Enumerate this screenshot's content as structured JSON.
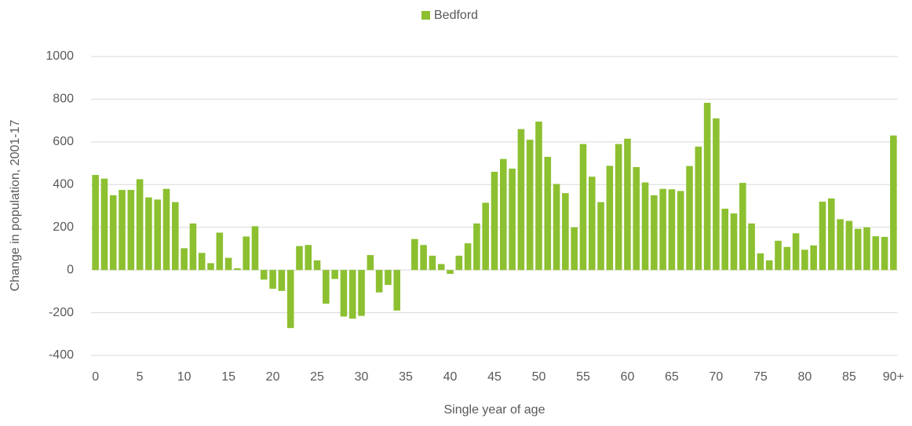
{
  "chart_data": {
    "type": "bar",
    "x_label": "Single year of age",
    "y_label": "Change in population, 2001-17",
    "categories": [
      "0",
      null,
      null,
      null,
      null,
      "5",
      null,
      null,
      null,
      null,
      "10",
      null,
      null,
      null,
      null,
      "15",
      null,
      null,
      null,
      null,
      "20",
      null,
      null,
      null,
      null,
      "25",
      null,
      null,
      null,
      null,
      "30",
      null,
      null,
      null,
      null,
      "35",
      null,
      null,
      null,
      null,
      "40",
      null,
      null,
      null,
      null,
      "45",
      null,
      null,
      null,
      null,
      "50",
      null,
      null,
      null,
      null,
      "55",
      null,
      null,
      null,
      null,
      "60",
      null,
      null,
      null,
      null,
      "65",
      null,
      null,
      null,
      null,
      "70",
      null,
      null,
      null,
      null,
      "75",
      null,
      null,
      null,
      null,
      "80",
      null,
      null,
      null,
      null,
      "85",
      null,
      null,
      null,
      null,
      "90+"
    ],
    "series": [
      {
        "name": "Bedford",
        "color": "#8cc030",
        "values": [
          445,
          428,
          350,
          375,
          375,
          425,
          340,
          330,
          380,
          318,
          102,
          218,
          80,
          32,
          175,
          57,
          8,
          157,
          205,
          -45,
          -88,
          -98,
          -272,
          112,
          117,
          45,
          -158,
          -42,
          -218,
          -228,
          -215,
          70,
          -105,
          -70,
          -190,
          0,
          145,
          117,
          67,
          28,
          -18,
          67,
          125,
          218,
          315,
          460,
          520,
          475,
          660,
          610,
          695,
          530,
          403,
          360,
          200,
          590,
          437,
          318,
          488,
          590,
          615,
          482,
          410,
          350,
          380,
          378,
          370,
          487,
          578,
          783,
          710,
          287,
          265,
          408,
          218,
          78,
          45,
          137,
          108,
          172,
          95,
          115,
          320,
          335,
          238,
          230,
          193,
          200,
          158,
          155,
          630
        ]
      }
    ],
    "ylim": [
      -400,
      1000
    ],
    "yticks": [
      -400,
      -200,
      0,
      200,
      400,
      600,
      800,
      1000
    ],
    "grid": true,
    "legend": "top"
  }
}
